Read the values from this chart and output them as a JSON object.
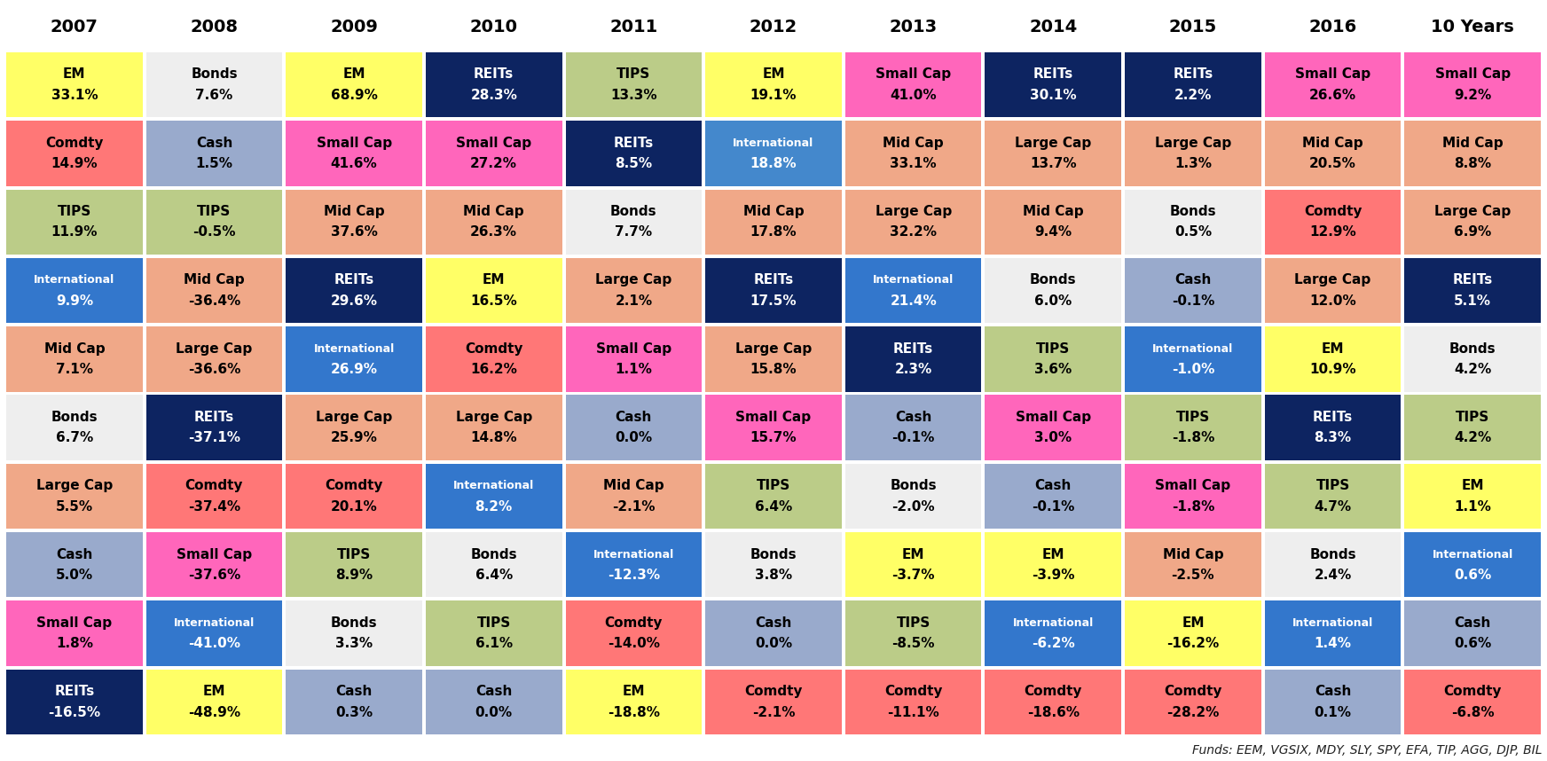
{
  "columns": [
    "2007",
    "2008",
    "2009",
    "2010",
    "2011",
    "2012",
    "2013",
    "2014",
    "2015",
    "2016",
    "10 Years"
  ],
  "cells": [
    [
      {
        "label": "EM",
        "value": "33.1%",
        "bg": "#FFFF66",
        "fg": "#000000"
      },
      {
        "label": "Bonds",
        "value": "7.6%",
        "bg": "#EEEEEE",
        "fg": "#000000"
      },
      {
        "label": "EM",
        "value": "68.9%",
        "bg": "#FFFF66",
        "fg": "#000000"
      },
      {
        "label": "REITs",
        "value": "28.3%",
        "bg": "#0D2461",
        "fg": "#FFFFFF"
      },
      {
        "label": "TIPS",
        "value": "13.3%",
        "bg": "#BBCC88",
        "fg": "#000000"
      },
      {
        "label": "EM",
        "value": "19.1%",
        "bg": "#FFFF66",
        "fg": "#000000"
      },
      {
        "label": "Small Cap",
        "value": "41.0%",
        "bg": "#FF66BB",
        "fg": "#000000"
      },
      {
        "label": "REITs",
        "value": "30.1%",
        "bg": "#0D2461",
        "fg": "#FFFFFF"
      },
      {
        "label": "REITs",
        "value": "2.2%",
        "bg": "#0D2461",
        "fg": "#FFFFFF"
      },
      {
        "label": "Small Cap",
        "value": "26.6%",
        "bg": "#FF66BB",
        "fg": "#000000"
      },
      {
        "label": "Small Cap",
        "value": "9.2%",
        "bg": "#FF66BB",
        "fg": "#000000"
      }
    ],
    [
      {
        "label": "Comdty",
        "value": "14.9%",
        "bg": "#FF7777",
        "fg": "#000000"
      },
      {
        "label": "Cash",
        "value": "1.5%",
        "bg": "#99AACC",
        "fg": "#000000"
      },
      {
        "label": "Small Cap",
        "value": "41.6%",
        "bg": "#FF66BB",
        "fg": "#000000"
      },
      {
        "label": "Small Cap",
        "value": "27.2%",
        "bg": "#FF66BB",
        "fg": "#000000"
      },
      {
        "label": "REITs",
        "value": "8.5%",
        "bg": "#0D2461",
        "fg": "#FFFFFF"
      },
      {
        "label": "International",
        "value": "18.8%",
        "bg": "#4488CC",
        "fg": "#FFFFFF"
      },
      {
        "label": "Mid Cap",
        "value": "33.1%",
        "bg": "#F0A888",
        "fg": "#000000"
      },
      {
        "label": "Large Cap",
        "value": "13.7%",
        "bg": "#F0A888",
        "fg": "#000000"
      },
      {
        "label": "Large Cap",
        "value": "1.3%",
        "bg": "#F0A888",
        "fg": "#000000"
      },
      {
        "label": "Mid Cap",
        "value": "20.5%",
        "bg": "#F0A888",
        "fg": "#000000"
      },
      {
        "label": "Mid Cap",
        "value": "8.8%",
        "bg": "#F0A888",
        "fg": "#000000"
      }
    ],
    [
      {
        "label": "TIPS",
        "value": "11.9%",
        "bg": "#BBCC88",
        "fg": "#000000"
      },
      {
        "label": "TIPS",
        "value": "-0.5%",
        "bg": "#BBCC88",
        "fg": "#000000"
      },
      {
        "label": "Mid Cap",
        "value": "37.6%",
        "bg": "#F0A888",
        "fg": "#000000"
      },
      {
        "label": "Mid Cap",
        "value": "26.3%",
        "bg": "#F0A888",
        "fg": "#000000"
      },
      {
        "label": "Bonds",
        "value": "7.7%",
        "bg": "#EEEEEE",
        "fg": "#000000"
      },
      {
        "label": "Mid Cap",
        "value": "17.8%",
        "bg": "#F0A888",
        "fg": "#000000"
      },
      {
        "label": "Large Cap",
        "value": "32.2%",
        "bg": "#F0A888",
        "fg": "#000000"
      },
      {
        "label": "Mid Cap",
        "value": "9.4%",
        "bg": "#F0A888",
        "fg": "#000000"
      },
      {
        "label": "Bonds",
        "value": "0.5%",
        "bg": "#EEEEEE",
        "fg": "#000000"
      },
      {
        "label": "Comdty",
        "value": "12.9%",
        "bg": "#FF7777",
        "fg": "#000000"
      },
      {
        "label": "Large Cap",
        "value": "6.9%",
        "bg": "#F0A888",
        "fg": "#000000"
      }
    ],
    [
      {
        "label": "International",
        "value": "9.9%",
        "bg": "#3377CC",
        "fg": "#FFFFFF"
      },
      {
        "label": "Mid Cap",
        "value": "-36.4%",
        "bg": "#F0A888",
        "fg": "#000000"
      },
      {
        "label": "REITs",
        "value": "29.6%",
        "bg": "#0D2461",
        "fg": "#FFFFFF"
      },
      {
        "label": "EM",
        "value": "16.5%",
        "bg": "#FFFF66",
        "fg": "#000000"
      },
      {
        "label": "Large Cap",
        "value": "2.1%",
        "bg": "#F0A888",
        "fg": "#000000"
      },
      {
        "label": "REITs",
        "value": "17.5%",
        "bg": "#0D2461",
        "fg": "#FFFFFF"
      },
      {
        "label": "International",
        "value": "21.4%",
        "bg": "#3377CC",
        "fg": "#FFFFFF"
      },
      {
        "label": "Bonds",
        "value": "6.0%",
        "bg": "#EEEEEE",
        "fg": "#000000"
      },
      {
        "label": "Cash",
        "value": "-0.1%",
        "bg": "#99AACC",
        "fg": "#000000"
      },
      {
        "label": "Large Cap",
        "value": "12.0%",
        "bg": "#F0A888",
        "fg": "#000000"
      },
      {
        "label": "REITs",
        "value": "5.1%",
        "bg": "#0D2461",
        "fg": "#FFFFFF"
      }
    ],
    [
      {
        "label": "Mid Cap",
        "value": "7.1%",
        "bg": "#F0A888",
        "fg": "#000000"
      },
      {
        "label": "Large Cap",
        "value": "-36.6%",
        "bg": "#F0A888",
        "fg": "#000000"
      },
      {
        "label": "International",
        "value": "26.9%",
        "bg": "#3377CC",
        "fg": "#FFFFFF"
      },
      {
        "label": "Comdty",
        "value": "16.2%",
        "bg": "#FF7777",
        "fg": "#000000"
      },
      {
        "label": "Small Cap",
        "value": "1.1%",
        "bg": "#FF66BB",
        "fg": "#000000"
      },
      {
        "label": "Large Cap",
        "value": "15.8%",
        "bg": "#F0A888",
        "fg": "#000000"
      },
      {
        "label": "REITs",
        "value": "2.3%",
        "bg": "#0D2461",
        "fg": "#FFFFFF"
      },
      {
        "label": "TIPS",
        "value": "3.6%",
        "bg": "#BBCC88",
        "fg": "#000000"
      },
      {
        "label": "International",
        "value": "-1.0%",
        "bg": "#3377CC",
        "fg": "#FFFFFF"
      },
      {
        "label": "EM",
        "value": "10.9%",
        "bg": "#FFFF66",
        "fg": "#000000"
      },
      {
        "label": "Bonds",
        "value": "4.2%",
        "bg": "#EEEEEE",
        "fg": "#000000"
      }
    ],
    [
      {
        "label": "Bonds",
        "value": "6.7%",
        "bg": "#EEEEEE",
        "fg": "#000000"
      },
      {
        "label": "REITs",
        "value": "-37.1%",
        "bg": "#0D2461",
        "fg": "#FFFFFF"
      },
      {
        "label": "Large Cap",
        "value": "25.9%",
        "bg": "#F0A888",
        "fg": "#000000"
      },
      {
        "label": "Large Cap",
        "value": "14.8%",
        "bg": "#F0A888",
        "fg": "#000000"
      },
      {
        "label": "Cash",
        "value": "0.0%",
        "bg": "#99AACC",
        "fg": "#000000"
      },
      {
        "label": "Small Cap",
        "value": "15.7%",
        "bg": "#FF66BB",
        "fg": "#000000"
      },
      {
        "label": "Cash",
        "value": "-0.1%",
        "bg": "#99AACC",
        "fg": "#000000"
      },
      {
        "label": "Small Cap",
        "value": "3.0%",
        "bg": "#FF66BB",
        "fg": "#000000"
      },
      {
        "label": "TIPS",
        "value": "-1.8%",
        "bg": "#BBCC88",
        "fg": "#000000"
      },
      {
        "label": "REITs",
        "value": "8.3%",
        "bg": "#0D2461",
        "fg": "#FFFFFF"
      },
      {
        "label": "TIPS",
        "value": "4.2%",
        "bg": "#BBCC88",
        "fg": "#000000"
      }
    ],
    [
      {
        "label": "Large Cap",
        "value": "5.5%",
        "bg": "#F0A888",
        "fg": "#000000"
      },
      {
        "label": "Comdty",
        "value": "-37.4%",
        "bg": "#FF7777",
        "fg": "#000000"
      },
      {
        "label": "Comdty",
        "value": "20.1%",
        "bg": "#FF7777",
        "fg": "#000000"
      },
      {
        "label": "International",
        "value": "8.2%",
        "bg": "#3377CC",
        "fg": "#FFFFFF"
      },
      {
        "label": "Mid Cap",
        "value": "-2.1%",
        "bg": "#F0A888",
        "fg": "#000000"
      },
      {
        "label": "TIPS",
        "value": "6.4%",
        "bg": "#BBCC88",
        "fg": "#000000"
      },
      {
        "label": "Bonds",
        "value": "-2.0%",
        "bg": "#EEEEEE",
        "fg": "#000000"
      },
      {
        "label": "Cash",
        "value": "-0.1%",
        "bg": "#99AACC",
        "fg": "#000000"
      },
      {
        "label": "Small Cap",
        "value": "-1.8%",
        "bg": "#FF66BB",
        "fg": "#000000"
      },
      {
        "label": "TIPS",
        "value": "4.7%",
        "bg": "#BBCC88",
        "fg": "#000000"
      },
      {
        "label": "EM",
        "value": "1.1%",
        "bg": "#FFFF66",
        "fg": "#000000"
      }
    ],
    [
      {
        "label": "Cash",
        "value": "5.0%",
        "bg": "#99AACC",
        "fg": "#000000"
      },
      {
        "label": "Small Cap",
        "value": "-37.6%",
        "bg": "#FF66BB",
        "fg": "#000000"
      },
      {
        "label": "TIPS",
        "value": "8.9%",
        "bg": "#BBCC88",
        "fg": "#000000"
      },
      {
        "label": "Bonds",
        "value": "6.4%",
        "bg": "#EEEEEE",
        "fg": "#000000"
      },
      {
        "label": "International",
        "value": "-12.3%",
        "bg": "#3377CC",
        "fg": "#FFFFFF"
      },
      {
        "label": "Bonds",
        "value": "3.8%",
        "bg": "#EEEEEE",
        "fg": "#000000"
      },
      {
        "label": "EM",
        "value": "-3.7%",
        "bg": "#FFFF66",
        "fg": "#000000"
      },
      {
        "label": "EM",
        "value": "-3.9%",
        "bg": "#FFFF66",
        "fg": "#000000"
      },
      {
        "label": "Mid Cap",
        "value": "-2.5%",
        "bg": "#F0A888",
        "fg": "#000000"
      },
      {
        "label": "Bonds",
        "value": "2.4%",
        "bg": "#EEEEEE",
        "fg": "#000000"
      },
      {
        "label": "International",
        "value": "0.6%",
        "bg": "#3377CC",
        "fg": "#FFFFFF"
      }
    ],
    [
      {
        "label": "Small Cap",
        "value": "1.8%",
        "bg": "#FF66BB",
        "fg": "#000000"
      },
      {
        "label": "International",
        "value": "-41.0%",
        "bg": "#3377CC",
        "fg": "#FFFFFF"
      },
      {
        "label": "Bonds",
        "value": "3.3%",
        "bg": "#EEEEEE",
        "fg": "#000000"
      },
      {
        "label": "TIPS",
        "value": "6.1%",
        "bg": "#BBCC88",
        "fg": "#000000"
      },
      {
        "label": "Comdty",
        "value": "-14.0%",
        "bg": "#FF7777",
        "fg": "#000000"
      },
      {
        "label": "Cash",
        "value": "0.0%",
        "bg": "#99AACC",
        "fg": "#000000"
      },
      {
        "label": "TIPS",
        "value": "-8.5%",
        "bg": "#BBCC88",
        "fg": "#000000"
      },
      {
        "label": "International",
        "value": "-6.2%",
        "bg": "#3377CC",
        "fg": "#FFFFFF"
      },
      {
        "label": "EM",
        "value": "-16.2%",
        "bg": "#FFFF66",
        "fg": "#000000"
      },
      {
        "label": "International",
        "value": "1.4%",
        "bg": "#3377CC",
        "fg": "#FFFFFF"
      },
      {
        "label": "Cash",
        "value": "0.6%",
        "bg": "#99AACC",
        "fg": "#000000"
      }
    ],
    [
      {
        "label": "REITs",
        "value": "-16.5%",
        "bg": "#0D2461",
        "fg": "#FFFFFF"
      },
      {
        "label": "EM",
        "value": "-48.9%",
        "bg": "#FFFF66",
        "fg": "#000000"
      },
      {
        "label": "Cash",
        "value": "0.3%",
        "bg": "#99AACC",
        "fg": "#000000"
      },
      {
        "label": "Cash",
        "value": "0.0%",
        "bg": "#99AACC",
        "fg": "#000000"
      },
      {
        "label": "EM",
        "value": "-18.8%",
        "bg": "#FFFF66",
        "fg": "#000000"
      },
      {
        "label": "Comdty",
        "value": "-2.1%",
        "bg": "#FF7777",
        "fg": "#000000"
      },
      {
        "label": "Comdty",
        "value": "-11.1%",
        "bg": "#FF7777",
        "fg": "#000000"
      },
      {
        "label": "Comdty",
        "value": "-18.6%",
        "bg": "#FF7777",
        "fg": "#000000"
      },
      {
        "label": "Comdty",
        "value": "-28.2%",
        "bg": "#FF7777",
        "fg": "#000000"
      },
      {
        "label": "Cash",
        "value": "0.1%",
        "bg": "#99AACC",
        "fg": "#000000"
      },
      {
        "label": "Comdty",
        "value": "-6.8%",
        "bg": "#FF7777",
        "fg": "#000000"
      }
    ]
  ],
  "footer": "Funds: EEM, VGSIX, MDY, SLY, SPY, EFA, TIP, AGG, DJP, BIL",
  "header_fg": "#000000",
  "header_fontsize": 14,
  "label_fontsize": 11,
  "value_fontsize": 11,
  "intl_fontsize": 9,
  "footer_fontsize": 10
}
